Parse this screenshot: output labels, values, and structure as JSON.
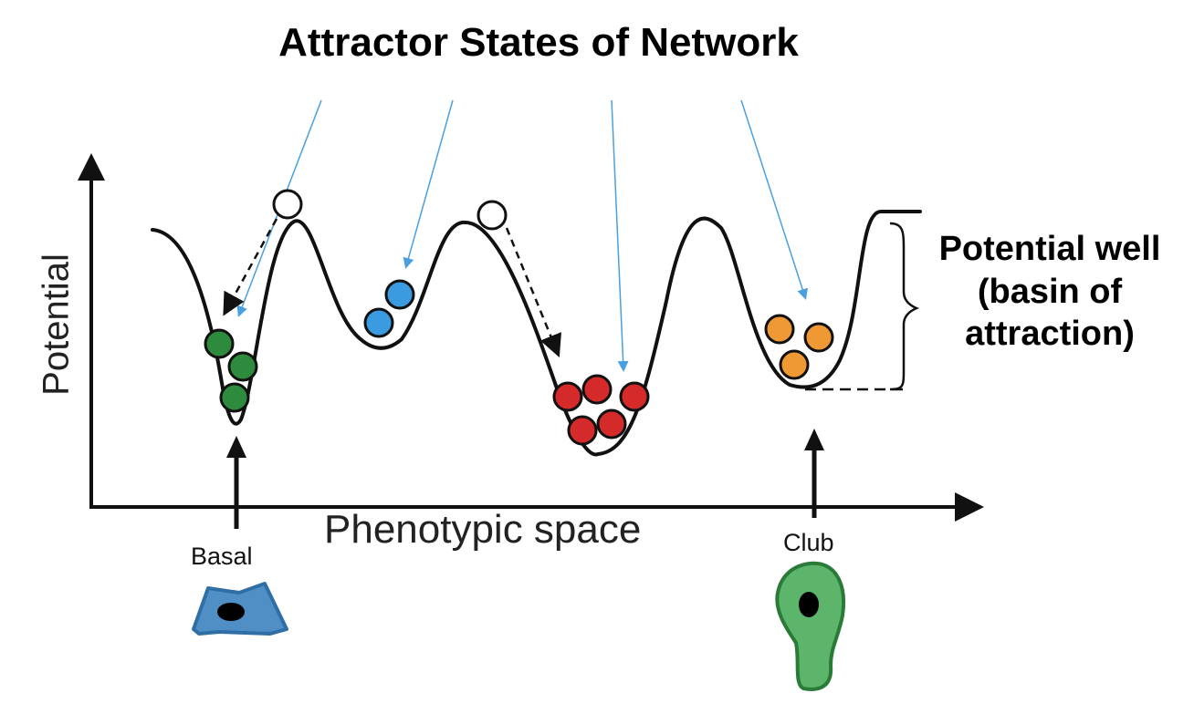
{
  "title": "Attractor States of Network",
  "axes": {
    "x_label": "Phenotypic space",
    "y_label": "Potential"
  },
  "annotation": {
    "lines": [
      "Potential well",
      "(basin of",
      "attraction)"
    ]
  },
  "cell_types": [
    {
      "name": "Basal",
      "color": "#4f8fc5"
    },
    {
      "name": "Club",
      "color": "#5cb56a"
    }
  ],
  "wells": [
    {
      "id": "well-1",
      "depth": "deep",
      "ball_color": "#2e8b3e",
      "ball_count": 3
    },
    {
      "id": "well-2",
      "depth": "shallow",
      "ball_color": "#3a9be0",
      "ball_count": 2
    },
    {
      "id": "well-3",
      "depth": "deepest",
      "ball_color": "#d42a2a",
      "ball_count": 5
    },
    {
      "id": "well-4",
      "depth": "medium",
      "ball_color": "#ef9935",
      "ball_count": 3
    }
  ],
  "colors": {
    "pointer_line": "#4a9fe0",
    "curve": "#111111",
    "unstable_ball": "#ffffff"
  }
}
